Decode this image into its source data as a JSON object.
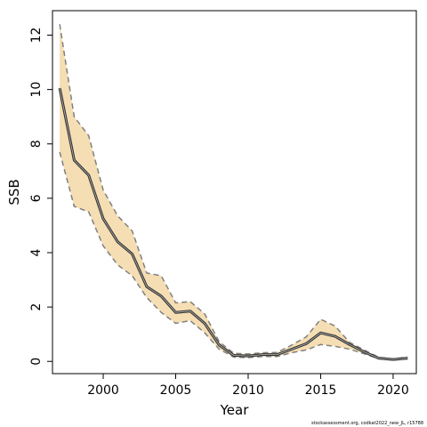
{
  "chart_data": {
    "type": "line",
    "xlabel": "Year",
    "ylabel": "SSB",
    "xlim": [
      1996.5,
      2021.6
    ],
    "ylim": [
      -0.45,
      12.9
    ],
    "x_ticks": [
      2000,
      2005,
      2010,
      2015,
      2020
    ],
    "y_ticks": [
      0,
      2,
      4,
      6,
      8,
      10,
      12
    ],
    "x": [
      1997,
      1998,
      1999,
      2000,
      2001,
      2002,
      2003,
      2004,
      2005,
      2006,
      2007,
      2008,
      2009,
      2010,
      2011,
      2012,
      2013,
      2014,
      2015,
      2016,
      2017,
      2018,
      2019,
      2020,
      2021
    ],
    "series": [
      {
        "role": "estimate",
        "values": [
          10.05,
          7.4,
          6.85,
          5.25,
          4.4,
          3.95,
          2.75,
          2.4,
          1.8,
          1.85,
          1.4,
          0.6,
          0.22,
          0.2,
          0.25,
          0.25,
          0.45,
          0.65,
          1.05,
          0.92,
          0.62,
          0.35,
          0.12,
          0.07,
          0.12
        ]
      },
      {
        "role": "upper",
        "values": [
          12.4,
          9.0,
          8.3,
          6.3,
          5.35,
          4.8,
          3.25,
          3.15,
          2.15,
          2.2,
          1.75,
          0.72,
          0.3,
          0.27,
          0.32,
          0.33,
          0.6,
          0.9,
          1.55,
          1.3,
          0.7,
          0.42,
          0.15,
          0.09,
          0.16
        ]
      },
      {
        "role": "lower",
        "values": [
          7.7,
          5.7,
          5.5,
          4.25,
          3.55,
          3.15,
          2.35,
          1.8,
          1.4,
          1.5,
          1.05,
          0.45,
          0.16,
          0.14,
          0.18,
          0.18,
          0.32,
          0.42,
          0.62,
          0.55,
          0.45,
          0.28,
          0.1,
          0.05,
          0.09
        ]
      }
    ],
    "colors": {
      "band": "#f5deb3",
      "estimate": "#333333",
      "bounds": "#808080"
    },
    "grid": false,
    "legend": "none"
  },
  "credit": "stockassessment.org, codkat2022_new_JL, r15788"
}
